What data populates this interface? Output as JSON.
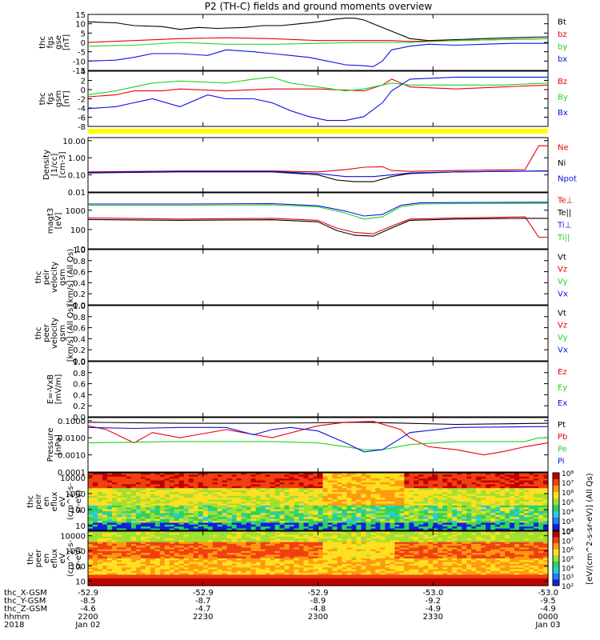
{
  "title": "P2 (TH-C) fields and ground moments overview",
  "colors": {
    "black": "#000000",
    "red": "#e8000b",
    "green": "#1fd21f",
    "blue": "#0a10e6",
    "yellow": "#ffff00"
  },
  "chart_data": [
    {
      "type": "line",
      "panel": "fgs_gse",
      "ylabel": [
        "thc",
        "fgs",
        "gse",
        "[nT]"
      ],
      "ylim": [
        -15,
        15
      ],
      "ticks": [
        "15",
        "10",
        "5",
        "0",
        "-5",
        "-10",
        "-15"
      ],
      "legend": [
        "Bt",
        "bz",
        "by",
        "bx"
      ],
      "series": [
        {
          "name": "Bt",
          "color": "black",
          "x": [
            0,
            0.06,
            0.1,
            0.16,
            0.2,
            0.24,
            0.28,
            0.34,
            0.38,
            0.42,
            0.46,
            0.5,
            0.54,
            0.56,
            0.58,
            0.6,
            0.62,
            0.66,
            0.7,
            0.74,
            0.8,
            0.86,
            0.92,
            1
          ],
          "values": [
            11,
            10.5,
            9,
            8.5,
            7,
            8,
            7.5,
            8,
            9,
            9,
            10,
            11,
            12.5,
            13,
            13,
            12,
            10,
            6,
            2,
            1,
            1.5,
            2,
            2.5,
            3
          ]
        },
        {
          "name": "bz",
          "color": "red",
          "x": [
            0,
            0.1,
            0.2,
            0.3,
            0.4,
            0.5,
            0.6,
            0.66,
            0.7,
            0.8,
            0.9,
            1
          ],
          "values": [
            0,
            1,
            2,
            2.5,
            2,
            1,
            1,
            1,
            0.5,
            1,
            1.5,
            2
          ]
        },
        {
          "name": "by",
          "color": "green",
          "x": [
            0,
            0.1,
            0.2,
            0.3,
            0.4,
            0.5,
            0.6,
            0.66,
            0.7,
            0.8,
            0.9,
            1
          ],
          "values": [
            -2,
            -1.5,
            0,
            -1,
            -1,
            -0.5,
            0,
            0,
            0,
            1,
            1.5,
            2
          ]
        },
        {
          "name": "bx",
          "color": "blue",
          "x": [
            0,
            0.06,
            0.1,
            0.14,
            0.2,
            0.26,
            0.3,
            0.36,
            0.4,
            0.44,
            0.48,
            0.52,
            0.56,
            0.6,
            0.62,
            0.64,
            0.66,
            0.7,
            0.74,
            0.8,
            0.86,
            0.92,
            1
          ],
          "values": [
            -10,
            -9.5,
            -8,
            -6,
            -6,
            -7,
            -4,
            -5,
            -6,
            -7,
            -8,
            -10,
            -12,
            -12.5,
            -13,
            -10,
            -4,
            -2,
            -1,
            -1.5,
            -1,
            -0.5,
            -0.5
          ]
        }
      ]
    },
    {
      "type": "line",
      "panel": "fgs_gsm",
      "ylabel": [
        "thc",
        "fgs",
        "gsm",
        "[nT]"
      ],
      "ylim": [
        -9,
        5
      ],
      "ticks": [
        "4",
        "2",
        "0",
        "-2",
        "-4",
        "-6",
        "-8"
      ],
      "legend": [
        "Bz",
        "By",
        "Bx"
      ],
      "series": [
        {
          "name": "Bz",
          "color": "red",
          "x": [
            0,
            0.06,
            0.1,
            0.16,
            0.2,
            0.3,
            0.4,
            0.5,
            0.6,
            0.64,
            0.66,
            0.7,
            0.8,
            0.9,
            1
          ],
          "values": [
            -1.5,
            -1,
            0,
            0,
            0.5,
            0,
            0.5,
            0.5,
            0,
            1.5,
            3,
            1,
            0.5,
            1,
            1.5
          ]
        },
        {
          "name": "By",
          "color": "green",
          "x": [
            0,
            0.06,
            0.1,
            0.14,
            0.2,
            0.3,
            0.36,
            0.4,
            0.44,
            0.5,
            0.56,
            0.6,
            0.64,
            0.66,
            0.7,
            0.8,
            0.9,
            1
          ],
          "values": [
            -1,
            0,
            1,
            2,
            2.5,
            2,
            3,
            3.5,
            2,
            1,
            0,
            0.5,
            1.5,
            2,
            1.5,
            1.5,
            1.5,
            2
          ]
        },
        {
          "name": "Bx",
          "color": "blue",
          "x": [
            0,
            0.06,
            0.1,
            0.14,
            0.2,
            0.26,
            0.3,
            0.36,
            0.4,
            0.44,
            0.48,
            0.52,
            0.56,
            0.6,
            0.64,
            0.66,
            0.7,
            0.8,
            0.9,
            1
          ],
          "values": [
            -4.5,
            -4,
            -3,
            -2,
            -4,
            -1,
            -2,
            -2,
            -3,
            -5,
            -6.5,
            -7.5,
            -7.5,
            -6.5,
            -3,
            0,
            3,
            3.5,
            3.5,
            3.5
          ]
        }
      ]
    },
    {
      "type": "line",
      "panel": "density",
      "ylabel": [
        "Density",
        "[1/cc]",
        "[cm-3]"
      ],
      "log": true,
      "ylim": [
        0.01,
        15
      ],
      "ticks": [
        "10.00",
        "1.00",
        "0.10",
        "0.01"
      ],
      "legend": [
        "Ne",
        "Ni",
        "Npot"
      ],
      "series": [
        {
          "name": "Ne",
          "color": "red",
          "x": [
            0,
            0.2,
            0.4,
            0.5,
            0.56,
            0.6,
            0.64,
            0.66,
            0.7,
            0.8,
            0.95,
            0.98,
            1
          ],
          "values": [
            0.15,
            0.17,
            0.17,
            0.15,
            0.2,
            0.28,
            0.3,
            0.18,
            0.16,
            0.18,
            0.2,
            5,
            5
          ]
        },
        {
          "name": "Ni",
          "color": "black",
          "x": [
            0,
            0.2,
            0.4,
            0.5,
            0.54,
            0.58,
            0.62,
            0.66,
            0.7,
            0.8,
            1
          ],
          "values": [
            0.13,
            0.15,
            0.15,
            0.1,
            0.05,
            0.04,
            0.04,
            0.08,
            0.12,
            0.15,
            0.17
          ]
        },
        {
          "name": "Npot",
          "color": "blue",
          "x": [
            0,
            0.2,
            0.4,
            0.5,
            0.56,
            0.62,
            0.66,
            0.7,
            0.8,
            1
          ],
          "values": [
            0.14,
            0.16,
            0.16,
            0.12,
            0.08,
            0.08,
            0.1,
            0.13,
            0.15,
            0.17
          ]
        }
      ]
    },
    {
      "type": "line",
      "panel": "temperature",
      "ylabel": [
        "magt3",
        "[eV]"
      ],
      "log": true,
      "ylim": [
        10,
        8000
      ],
      "ticks": [
        "1000",
        "100",
        "10"
      ],
      "legend": [
        "Te⊥",
        "Te||",
        "Ti⊥",
        "Ti||"
      ],
      "series": [
        {
          "name": "Te⊥",
          "color": "red",
          "x": [
            0,
            0.2,
            0.4,
            0.5,
            0.54,
            0.58,
            0.62,
            0.66,
            0.7,
            0.8,
            0.95,
            0.98,
            1
          ],
          "values": [
            400,
            350,
            380,
            300,
            120,
            70,
            60,
            150,
            350,
            400,
            450,
            40,
            40
          ]
        },
        {
          "name": "Te||",
          "color": "black",
          "x": [
            0,
            0.2,
            0.4,
            0.5,
            0.54,
            0.58,
            0.62,
            0.66,
            0.7,
            0.8,
            0.95,
            1
          ],
          "values": [
            330,
            300,
            320,
            250,
            90,
            50,
            45,
            120,
            300,
            350,
            380,
            380
          ]
        },
        {
          "name": "Ti⊥",
          "color": "blue",
          "x": [
            0,
            0.2,
            0.4,
            0.5,
            0.56,
            0.6,
            0.64,
            0.68,
            0.72,
            0.8,
            1
          ],
          "values": [
            2100,
            2100,
            2200,
            1700,
            900,
            500,
            600,
            1800,
            2400,
            2500,
            2600
          ]
        },
        {
          "name": "Ti||",
          "color": "green",
          "x": [
            0,
            0.2,
            0.4,
            0.5,
            0.56,
            0.6,
            0.64,
            0.68,
            0.72,
            0.8,
            1
          ],
          "values": [
            1800,
            1800,
            1900,
            1500,
            700,
            350,
            450,
            1500,
            2100,
            2200,
            2300
          ]
        }
      ]
    },
    {
      "type": "line",
      "panel": "peir_velocity",
      "ylabel": [
        "thc",
        "peir",
        "velocity",
        "gsm",
        "[km/s] (All Qs)"
      ],
      "ylim": [
        0,
        1
      ],
      "ticks": [
        "1.0",
        "0.8",
        "0.6",
        "0.4",
        "0.2",
        "0.0"
      ],
      "legend": [
        "Vt",
        "Vz",
        "Vy",
        "Vx"
      ],
      "series": []
    },
    {
      "type": "line",
      "panel": "peer_velocity",
      "ylabel": [
        "thc",
        "peer",
        "velocity",
        "gsm",
        "[km/s] (All Qs)"
      ],
      "ylim": [
        0,
        1
      ],
      "ticks": [
        "1.0",
        "0.8",
        "0.6",
        "0.4",
        "0.2",
        "0.0"
      ],
      "legend": [
        "Vt",
        "Vz",
        "Vy",
        "Vx"
      ],
      "series": []
    },
    {
      "type": "line",
      "panel": "efield",
      "ylabel": [
        "E=-VxB",
        "[mV/m]"
      ],
      "ylim": [
        0,
        1
      ],
      "ticks": [
        "1.0",
        "0.8",
        "0.6",
        "0.4",
        "0.2",
        "0.0"
      ],
      "legend": [
        "Ez",
        "Ey",
        "Ex"
      ],
      "series": []
    },
    {
      "type": "line",
      "panel": "pressure",
      "ylabel": [
        "Pressure",
        "[nPa]"
      ],
      "log": true,
      "ylim": [
        0.0001,
        0.15
      ],
      "ticks": [
        "0.1000",
        "0.0100",
        "0.0010",
        "0.0001"
      ],
      "legend": [
        "Pt",
        "Pb",
        "Pe",
        "Pi"
      ],
      "series": [
        {
          "name": "Pt",
          "color": "black",
          "x": [
            0,
            0.2,
            0.4,
            0.6,
            0.8,
            1
          ],
          "values": [
            0.08,
            0.07,
            0.07,
            0.08,
            0.06,
            0.07
          ]
        },
        {
          "name": "Pb",
          "color": "red",
          "x": [
            0,
            0.04,
            0.1,
            0.14,
            0.2,
            0.3,
            0.4,
            0.5,
            0.56,
            0.62,
            0.68,
            0.7,
            0.74,
            0.8,
            0.86,
            0.9,
            0.95,
            1
          ],
          "values": [
            0.05,
            0.03,
            0.005,
            0.02,
            0.01,
            0.03,
            0.01,
            0.05,
            0.08,
            0.09,
            0.03,
            0.01,
            0.003,
            0.002,
            0.001,
            0.0015,
            0.003,
            0.005
          ]
        },
        {
          "name": "Pe",
          "color": "green",
          "x": [
            0,
            0.2,
            0.4,
            0.5,
            0.56,
            0.6,
            0.64,
            0.7,
            0.8,
            0.95,
            0.98,
            1
          ],
          "values": [
            0.005,
            0.006,
            0.006,
            0.005,
            0.003,
            0.002,
            0.002,
            0.004,
            0.006,
            0.006,
            0.01,
            0.01
          ]
        },
        {
          "name": "Pi",
          "color": "blue",
          "x": [
            0,
            0.1,
            0.2,
            0.3,
            0.36,
            0.4,
            0.44,
            0.5,
            0.56,
            0.6,
            0.64,
            0.7,
            0.8,
            1
          ],
          "values": [
            0.04,
            0.035,
            0.04,
            0.04,
            0.015,
            0.03,
            0.04,
            0.025,
            0.005,
            0.0015,
            0.002,
            0.02,
            0.04,
            0.045
          ]
        }
      ]
    },
    {
      "type": "heatmap",
      "panel": "peir_eflux",
      "ylabel": [
        "thc",
        "peir",
        "en",
        "eflux",
        "eV",
        "(cm^2-s-",
        "sr-eV)"
      ],
      "log": true,
      "ylim": [
        5,
        20000
      ],
      "ticks": [
        "10000",
        "1000",
        "100",
        "10"
      ]
    },
    {
      "type": "heatmap",
      "panel": "peer_eflux",
      "ylabel": [
        "thc",
        "peer",
        "en",
        "eflux",
        "eV",
        "(cm^2-s-",
        "sr-eV)"
      ],
      "log": true,
      "ylim": [
        5,
        20000
      ],
      "ticks": [
        "10000",
        "1000",
        "100",
        "10"
      ]
    }
  ],
  "colorbar": {
    "upper_ticks": [
      "10⁸",
      "10⁷",
      "10⁶",
      "10⁵",
      "10⁴",
      "10³",
      "10²"
    ],
    "lower_ticks": [
      "10⁸",
      "10⁷",
      "10⁶",
      "10⁵",
      "10⁴",
      "10³",
      "10²"
    ],
    "label": "[eV/(cm^2-s-sr-eV)] (All Qs)"
  },
  "x_axis": {
    "row_labels": [
      "thc_X-GSM",
      "thc_Y-GSM",
      "thc_Z-GSM",
      "hhmm",
      "2018"
    ],
    "columns": [
      [
        "-52.9",
        "-8.5",
        "-4.6",
        "2200",
        "Jan 02"
      ],
      [
        "-52.9",
        "-8.7",
        "-4.7",
        "2230",
        ""
      ],
      [
        "-52.9",
        "-8.9",
        "-4.8",
        "2300",
        ""
      ],
      [
        "-53.0",
        "-9.2",
        "-4.9",
        "2330",
        ""
      ],
      [
        "-53.0",
        "-9.5",
        "-4.9",
        "0000",
        "Jan 03"
      ]
    ]
  }
}
